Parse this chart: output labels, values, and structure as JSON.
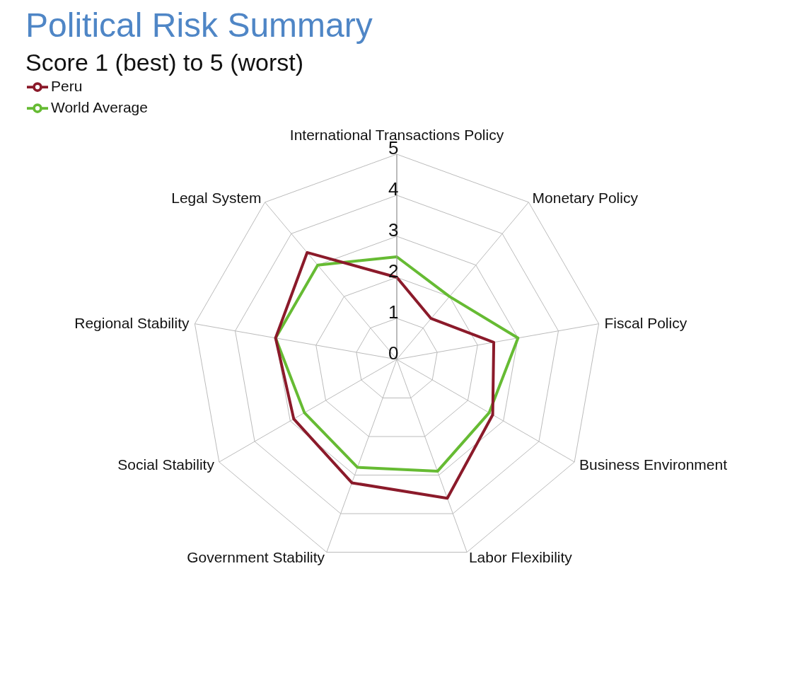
{
  "chart_data": {
    "type": "radar",
    "title": "Political Risk Summary",
    "subtitle": "Score 1 (best) to 5 (worst)",
    "categories": [
      "International Transactions Policy",
      "Monetary Policy",
      "Fiscal Policy",
      "Business Environment",
      "Labor Flexibility",
      "Government Stability",
      "Social Stability",
      "Regional Stability",
      "Legal System"
    ],
    "series": [
      {
        "name": "World Average",
        "color": "#66bb33",
        "values": [
          2.5,
          2.0,
          3.0,
          2.6,
          2.9,
          2.8,
          2.6,
          3.0,
          3.0
        ]
      },
      {
        "name": "Peru",
        "color": "#8b1a2a",
        "values": [
          2.0,
          1.3,
          2.4,
          2.7,
          3.6,
          3.2,
          2.9,
          3.0,
          3.4
        ]
      }
    ],
    "ylim": [
      0,
      5
    ],
    "yticks": [
      0,
      1,
      2,
      3,
      4,
      5
    ],
    "grid": true,
    "legend": "top left",
    "marker": "none",
    "line_style": "solid"
  }
}
